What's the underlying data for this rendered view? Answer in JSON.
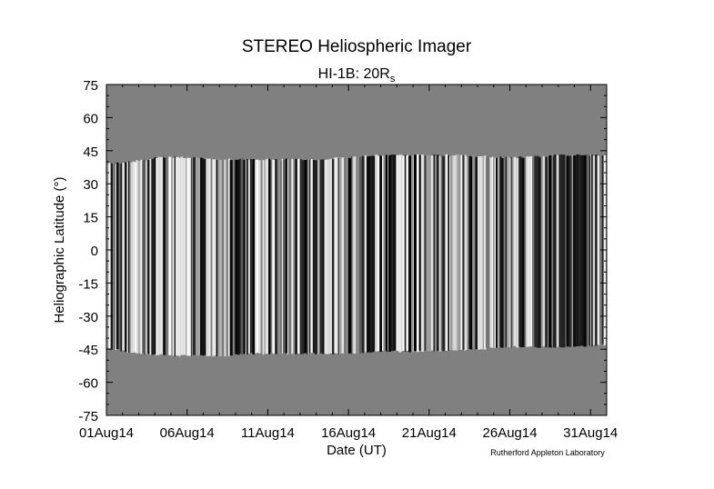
{
  "chart_data": {
    "type": "heatmap",
    "title": "STEREO Heliospheric Imager",
    "subtitle_main": "HI-1B: 20R",
    "subtitle_sub": "s",
    "xlabel": "Date (UT)",
    "ylabel": "Heliographic Latitude (°)",
    "credit": "Rutherford Appleton Laboratory",
    "x_ticks": [
      "01Aug14",
      "06Aug14",
      "11Aug14",
      "16Aug14",
      "21Aug14",
      "26Aug14",
      "31Aug14"
    ],
    "y_ticks": [
      "75",
      "60",
      "45",
      "30",
      "15",
      "0",
      "-15",
      "-30",
      "-45",
      "-60",
      "-75"
    ],
    "xlim_days": [
      1.0,
      32.0
    ],
    "ylim": [
      -75,
      75
    ],
    "background_color": "#808080",
    "data_upper_edge_deg": [
      [
        1.0,
        39
      ],
      [
        2.5,
        40
      ],
      [
        3.5,
        41
      ],
      [
        4.0,
        42
      ],
      [
        6.0,
        42
      ],
      [
        8.0,
        41
      ],
      [
        11.0,
        41
      ],
      [
        14.0,
        41
      ],
      [
        16.0,
        42
      ],
      [
        18.0,
        43
      ],
      [
        21.0,
        43
      ],
      [
        23.0,
        43
      ],
      [
        25.0,
        42
      ],
      [
        27.0,
        42
      ],
      [
        29.0,
        43
      ],
      [
        32.0,
        43
      ]
    ],
    "data_lower_edge_deg": [
      [
        1.0,
        -44
      ],
      [
        2.0,
        -46
      ],
      [
        3.0,
        -47
      ],
      [
        5.0,
        -48
      ],
      [
        8.0,
        -48
      ],
      [
        10.0,
        -47
      ],
      [
        14.0,
        -47
      ],
      [
        16.0,
        -47
      ],
      [
        18.0,
        -46
      ],
      [
        21.0,
        -46
      ],
      [
        24.0,
        -45
      ],
      [
        26.0,
        -44
      ],
      [
        29.0,
        -44
      ],
      [
        32.0,
        -43
      ]
    ]
  }
}
